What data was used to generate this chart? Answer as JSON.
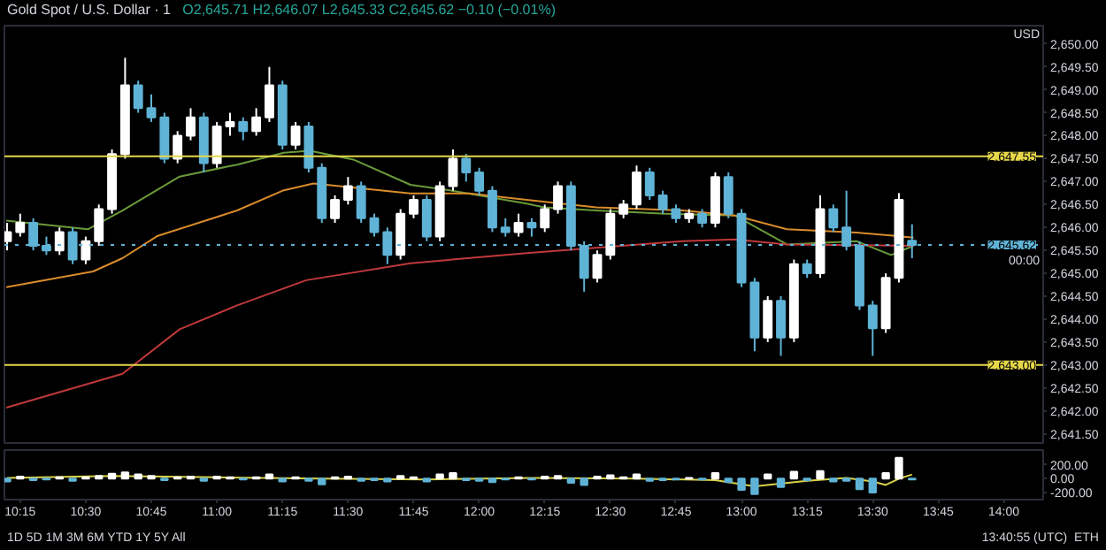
{
  "chart_data": [
    {
      "type": "candlestick",
      "title": "Gold Spot / U.S. Dollar · 1",
      "subtitle": "O2,645.71 H2,646.07 L2,645.33 C2,645.62 −0.10 (−0.01%)",
      "annotations": [
        "USD",
        "00:00"
      ],
      "x": [
        10.2,
        10.25,
        10.3,
        10.35,
        10.4,
        10.45,
        10.5,
        10.55,
        10.6,
        10.65,
        10.7,
        10.75,
        10.8,
        10.85,
        10.9,
        10.95,
        11.0,
        11.05,
        11.1,
        11.15,
        11.2,
        11.25,
        11.3,
        11.35,
        11.4,
        11.45,
        11.5,
        11.55,
        11.6,
        11.65,
        11.7,
        11.75,
        11.8,
        11.85,
        11.9,
        11.95,
        12.0,
        12.05,
        12.1,
        12.15,
        12.2,
        12.25,
        12.3,
        12.35,
        12.4,
        12.45,
        12.5,
        12.55,
        12.6,
        12.65,
        12.7,
        12.75,
        12.8,
        12.85,
        12.9,
        12.95,
        13.0,
        13.05,
        13.1,
        13.15,
        13.2,
        13.25,
        13.3,
        13.35,
        13.4,
        13.45,
        13.5,
        13.55,
        13.6,
        13.65
      ],
      "ohlc": [
        [
          2645.7,
          2646.1,
          2645.5,
          2645.9
        ],
        [
          2645.9,
          2646.3,
          2645.8,
          2646.1
        ],
        [
          2646.1,
          2646.2,
          2645.5,
          2645.6
        ],
        [
          2645.6,
          2645.8,
          2645.4,
          2645.5
        ],
        [
          2645.5,
          2646.0,
          2645.4,
          2645.9
        ],
        [
          2645.9,
          2646.0,
          2645.2,
          2645.3
        ],
        [
          2645.3,
          2645.8,
          2645.2,
          2645.7
        ],
        [
          2645.7,
          2646.5,
          2645.6,
          2646.4
        ],
        [
          2646.4,
          2647.7,
          2646.3,
          2647.6
        ],
        [
          2647.6,
          2649.7,
          2647.5,
          2649.1
        ],
        [
          2649.1,
          2649.2,
          2648.5,
          2648.6
        ],
        [
          2648.6,
          2648.9,
          2648.3,
          2648.4
        ],
        [
          2648.4,
          2648.5,
          2647.4,
          2647.5
        ],
        [
          2647.5,
          2648.1,
          2647.4,
          2648.0
        ],
        [
          2648.0,
          2648.6,
          2647.9,
          2648.4
        ],
        [
          2648.4,
          2648.5,
          2647.2,
          2647.4
        ],
        [
          2647.4,
          2648.3,
          2647.3,
          2648.2
        ],
        [
          2648.2,
          2648.5,
          2648.0,
          2648.3
        ],
        [
          2648.3,
          2648.4,
          2647.9,
          2648.1
        ],
        [
          2648.1,
          2648.6,
          2648.0,
          2648.4
        ],
        [
          2648.4,
          2649.5,
          2648.3,
          2649.1
        ],
        [
          2649.1,
          2649.2,
          2647.7,
          2647.8
        ],
        [
          2647.8,
          2648.3,
          2647.7,
          2648.2
        ],
        [
          2648.2,
          2648.3,
          2647.2,
          2647.3
        ],
        [
          2647.3,
          2647.4,
          2646.1,
          2646.2
        ],
        [
          2646.2,
          2646.7,
          2646.1,
          2646.6
        ],
        [
          2646.6,
          2647.1,
          2646.5,
          2646.9
        ],
        [
          2646.9,
          2647.0,
          2646.1,
          2646.2
        ],
        [
          2646.2,
          2646.3,
          2645.8,
          2645.9
        ],
        [
          2645.9,
          2646.0,
          2645.2,
          2645.4
        ],
        [
          2645.4,
          2646.4,
          2645.3,
          2646.3
        ],
        [
          2646.3,
          2646.7,
          2646.2,
          2646.6
        ],
        [
          2646.6,
          2646.7,
          2645.7,
          2645.8
        ],
        [
          2645.8,
          2647.0,
          2645.7,
          2646.9
        ],
        [
          2646.9,
          2647.7,
          2646.8,
          2647.5
        ],
        [
          2647.5,
          2647.6,
          2647.0,
          2647.2
        ],
        [
          2647.2,
          2647.3,
          2646.7,
          2646.8
        ],
        [
          2646.8,
          2646.9,
          2645.9,
          2646.0
        ],
        [
          2646.0,
          2646.2,
          2645.8,
          2645.9
        ],
        [
          2645.9,
          2646.3,
          2645.8,
          2646.1
        ],
        [
          2646.1,
          2646.2,
          2645.8,
          2646.0
        ],
        [
          2646.0,
          2646.5,
          2645.9,
          2646.4
        ],
        [
          2646.4,
          2647.0,
          2646.3,
          2646.9
        ],
        [
          2646.9,
          2647.0,
          2645.5,
          2645.6
        ],
        [
          2645.6,
          2645.7,
          2644.6,
          2644.9
        ],
        [
          2644.9,
          2645.5,
          2644.8,
          2645.4
        ],
        [
          2645.4,
          2646.4,
          2645.3,
          2646.3
        ],
        [
          2646.3,
          2646.6,
          2646.2,
          2646.5
        ],
        [
          2646.5,
          2647.35,
          2646.4,
          2647.2
        ],
        [
          2647.2,
          2647.3,
          2646.6,
          2646.7
        ],
        [
          2646.7,
          2646.8,
          2646.3,
          2646.4
        ],
        [
          2646.4,
          2646.5,
          2646.1,
          2646.2
        ],
        [
          2646.2,
          2646.4,
          2646.1,
          2646.3
        ],
        [
          2646.3,
          2646.4,
          2646.0,
          2646.1
        ],
        [
          2646.1,
          2647.2,
          2646.0,
          2647.1
        ],
        [
          2647.1,
          2647.2,
          2646.2,
          2646.3
        ],
        [
          2646.3,
          2646.4,
          2644.7,
          2644.8
        ],
        [
          2644.8,
          2644.9,
          2643.3,
          2643.6
        ],
        [
          2643.6,
          2644.5,
          2643.5,
          2644.4
        ],
        [
          2644.4,
          2644.5,
          2643.2,
          2643.6
        ],
        [
          2643.6,
          2645.3,
          2643.5,
          2645.2
        ],
        [
          2645.2,
          2645.3,
          2644.9,
          2645.0
        ],
        [
          2645.0,
          2646.7,
          2644.9,
          2646.4
        ],
        [
          2646.4,
          2646.5,
          2645.9,
          2646.0
        ],
        [
          2646.0,
          2646.8,
          2645.5,
          2645.6
        ],
        [
          2645.6,
          2645.7,
          2644.2,
          2644.3
        ],
        [
          2644.3,
          2644.4,
          2643.2,
          2643.8
        ],
        [
          2643.8,
          2645.0,
          2643.7,
          2644.9
        ],
        [
          2644.9,
          2646.75,
          2644.8,
          2646.6
        ],
        [
          2645.71,
          2646.07,
          2645.33,
          2645.62
        ]
      ],
      "colors": [
        "#ffffff",
        "#ffffff",
        "#5fb3d6",
        "#5fb3d6",
        "#ffffff",
        "#5fb3d6",
        "#ffffff",
        "#ffffff",
        "#ffffff",
        "#ffffff",
        "#5fb3d6",
        "#5fb3d6",
        "#5fb3d6",
        "#ffffff",
        "#ffffff",
        "#5fb3d6",
        "#ffffff",
        "#ffffff",
        "#5fb3d6",
        "#ffffff",
        "#ffffff",
        "#5fb3d6",
        "#ffffff",
        "#5fb3d6",
        "#5fb3d6",
        "#ffffff",
        "#ffffff",
        "#5fb3d6",
        "#5fb3d6",
        "#5fb3d6",
        "#ffffff",
        "#ffffff",
        "#5fb3d6",
        "#ffffff",
        "#ffffff",
        "#5fb3d6",
        "#5fb3d6",
        "#5fb3d6",
        "#5fb3d6",
        "#ffffff",
        "#5fb3d6",
        "#ffffff",
        "#ffffff",
        "#5fb3d6",
        "#5fb3d6",
        "#ffffff",
        "#ffffff",
        "#ffffff",
        "#ffffff",
        "#5fb3d6",
        "#5fb3d6",
        "#5fb3d6",
        "#ffffff",
        "#5fb3d6",
        "#ffffff",
        "#5fb3d6",
        "#5fb3d6",
        "#5fb3d6",
        "#ffffff",
        "#5fb3d6",
        "#ffffff",
        "#5fb3d6",
        "#ffffff",
        "#5fb3d6",
        "#5fb3d6",
        "#5fb3d6",
        "#5fb3d6",
        "#ffffff",
        "#ffffff",
        "#5fb3d6"
      ],
      "series": [
        {
          "type": "line",
          "color": "#6a9a3a",
          "x": [
            10.197,
            10.508,
            10.64,
            10.858,
            11.077,
            11.255,
            11.354,
            11.52,
            11.738,
            11.897,
            12.181,
            12.247,
            12.446,
            12.71,
            12.975,
            13.173,
            13.438,
            13.57,
            13.656
          ],
          "values": [
            2646.15,
            2645.96,
            2646.37,
            2647.11,
            2647.37,
            2647.63,
            2647.67,
            2647.48,
            2646.93,
            2646.8,
            2646.52,
            2646.44,
            2646.37,
            2646.3,
            2646.26,
            2645.63,
            2645.7,
            2645.4,
            2645.6
          ]
        },
        {
          "type": "line",
          "color": "#d98c2b",
          "x": [
            10.197,
            10.528,
            10.64,
            10.772,
            11.077,
            11.255,
            11.368,
            11.738,
            11.963,
            12.181,
            12.446,
            12.776,
            12.975,
            13.173,
            13.438,
            13.656
          ],
          "values": [
            2644.7,
            2645.04,
            2645.33,
            2645.81,
            2646.37,
            2646.81,
            2646.96,
            2646.74,
            2646.74,
            2646.6,
            2646.44,
            2646.37,
            2646.26,
            2645.96,
            2645.89,
            2645.78
          ]
        },
        {
          "type": "line",
          "color": "#c0393b",
          "x": [
            10.197,
            10.64,
            10.858,
            11.077,
            11.341,
            11.738,
            12.181,
            12.776,
            12.975,
            13.173,
            13.656
          ],
          "values": [
            2642.07,
            2642.81,
            2643.78,
            2644.3,
            2644.85,
            2645.22,
            2645.44,
            2645.7,
            2645.74,
            2645.63,
            2645.6
          ]
        }
      ],
      "ref_lines": [
        {
          "axis": "y",
          "value": 2647.55,
          "label": "2,647.55",
          "color": "#e6d84a",
          "line_style": "solid"
        },
        {
          "axis": "y",
          "value": 2643.0,
          "label": "2,643.00",
          "color": "#e6d84a",
          "line_style": "solid"
        },
        {
          "axis": "y",
          "value": 2645.62,
          "label": "2,645.62",
          "color": "#5fb3d6",
          "line_style": "dotted"
        }
      ],
      "xlim": [
        10.19,
        14.15
      ],
      "ylim": [
        2641.3,
        2650.4
      ],
      "yticks": [
        {
          "value": 2641.5,
          "label": "2,641.50"
        },
        {
          "value": 2642.0,
          "label": "2,642.00"
        },
        {
          "value": 2642.5,
          "label": "2,642.50"
        },
        {
          "value": 2643.0,
          "label": "2,643.00"
        },
        {
          "value": 2643.5,
          "label": "2,643.50"
        },
        {
          "value": 2644.0,
          "label": "2,644.00"
        },
        {
          "value": 2644.5,
          "label": "2,644.50"
        },
        {
          "value": 2645.0,
          "label": "2,645.00"
        },
        {
          "value": 2645.5,
          "label": "2,645.50"
        },
        {
          "value": 2646.0,
          "label": "2,646.00"
        },
        {
          "value": 2646.5,
          "label": "2,646.50"
        },
        {
          "value": 2647.0,
          "label": "2,647.00"
        },
        {
          "value": 2647.5,
          "label": "2,647.50"
        },
        {
          "value": 2648.0,
          "label": "2,648.00"
        },
        {
          "value": 2648.5,
          "label": "2,648.50"
        },
        {
          "value": 2649.0,
          "label": "2,649.00"
        },
        {
          "value": 2649.5,
          "label": "2,649.50"
        },
        {
          "value": 2650.0,
          "label": "2,650.00"
        }
      ],
      "tick_labels": "y"
    },
    {
      "type": "bar",
      "annotations": [
        "1D 5D 1M 3M 6M YTD 1Y 5Y All",
        "13:40:55 (UTC)",
        "ETH"
      ],
      "x": [
        10.2,
        10.25,
        10.3,
        10.35,
        10.4,
        10.45,
        10.5,
        10.55,
        10.6,
        10.65,
        10.7,
        10.75,
        10.8,
        10.85,
        10.9,
        10.95,
        11.0,
        11.05,
        11.1,
        11.15,
        11.2,
        11.25,
        11.3,
        11.35,
        11.4,
        11.45,
        11.5,
        11.55,
        11.6,
        11.65,
        11.7,
        11.75,
        11.8,
        11.85,
        11.9,
        11.95,
        12.0,
        12.05,
        12.1,
        12.15,
        12.2,
        12.25,
        12.3,
        12.35,
        12.4,
        12.45,
        12.5,
        12.55,
        12.6,
        12.65,
        12.7,
        12.75,
        12.8,
        12.85,
        12.9,
        12.95,
        13.0,
        13.05,
        13.1,
        13.15,
        13.2,
        13.25,
        13.3,
        13.35,
        13.4,
        13.45,
        13.5,
        13.55,
        13.6,
        13.65
      ],
      "values": [
        -40,
        30,
        -20,
        -10,
        20,
        -30,
        20,
        40,
        70,
        90,
        60,
        40,
        -20,
        20,
        30,
        -30,
        30,
        20,
        -10,
        20,
        60,
        -40,
        20,
        -30,
        -80,
        20,
        30,
        -30,
        -20,
        -40,
        40,
        20,
        -40,
        60,
        80,
        -20,
        -30,
        -50,
        -10,
        20,
        -10,
        30,
        40,
        -60,
        -90,
        30,
        50,
        20,
        60,
        -30,
        -20,
        -10,
        10,
        -10,
        80,
        -50,
        -160,
        -220,
        60,
        -120,
        100,
        -20,
        110,
        -40,
        -30,
        -150,
        -200,
        80,
        300,
        -10
      ],
      "colors": [
        "#5fb3d6",
        "#ffffff",
        "#5fb3d6",
        "#5fb3d6",
        "#ffffff",
        "#5fb3d6",
        "#ffffff",
        "#ffffff",
        "#ffffff",
        "#ffffff",
        "#ffffff",
        "#ffffff",
        "#5fb3d6",
        "#ffffff",
        "#ffffff",
        "#5fb3d6",
        "#ffffff",
        "#ffffff",
        "#5fb3d6",
        "#ffffff",
        "#ffffff",
        "#5fb3d6",
        "#ffffff",
        "#5fb3d6",
        "#5fb3d6",
        "#ffffff",
        "#ffffff",
        "#5fb3d6",
        "#5fb3d6",
        "#5fb3d6",
        "#ffffff",
        "#ffffff",
        "#5fb3d6",
        "#ffffff",
        "#ffffff",
        "#5fb3d6",
        "#5fb3d6",
        "#5fb3d6",
        "#5fb3d6",
        "#ffffff",
        "#5fb3d6",
        "#ffffff",
        "#ffffff",
        "#5fb3d6",
        "#5fb3d6",
        "#ffffff",
        "#ffffff",
        "#ffffff",
        "#ffffff",
        "#5fb3d6",
        "#5fb3d6",
        "#5fb3d6",
        "#ffffff",
        "#5fb3d6",
        "#ffffff",
        "#5fb3d6",
        "#5fb3d6",
        "#5fb3d6",
        "#ffffff",
        "#5fb3d6",
        "#ffffff",
        "#5fb3d6",
        "#ffffff",
        "#5fb3d6",
        "#5fb3d6",
        "#5fb3d6",
        "#5fb3d6",
        "#ffffff",
        "#ffffff",
        "#5fb3d6"
      ],
      "series": [
        {
          "type": "line",
          "color": "#d9d24a",
          "x": [
            10.2,
            10.6,
            11.0,
            11.4,
            11.8,
            12.2,
            12.6,
            12.9,
            13.05,
            13.25,
            13.4,
            13.5,
            13.55,
            13.6,
            13.65
          ],
          "values": [
            10,
            40,
            20,
            0,
            -10,
            10,
            0,
            -20,
            -110,
            -30,
            10,
            -40,
            -90,
            0,
            60
          ]
        }
      ],
      "xlim": [
        10.19,
        14.15
      ],
      "xticks": [
        {
          "value": 10.25,
          "label": "10:15"
        },
        {
          "value": 10.5,
          "label": "10:30"
        },
        {
          "value": 10.75,
          "label": "10:45"
        },
        {
          "value": 11.0,
          "label": "11:00"
        },
        {
          "value": 11.25,
          "label": "11:15"
        },
        {
          "value": 11.5,
          "label": "11:30"
        },
        {
          "value": 11.75,
          "label": "11:45"
        },
        {
          "value": 12.0,
          "label": "12:00"
        },
        {
          "value": 12.25,
          "label": "12:15"
        },
        {
          "value": 12.5,
          "label": "12:30"
        },
        {
          "value": 12.75,
          "label": "12:45"
        },
        {
          "value": 13.0,
          "label": "13:00"
        },
        {
          "value": 13.25,
          "label": "13:15"
        },
        {
          "value": 13.5,
          "label": "13:30"
        },
        {
          "value": 13.75,
          "label": "13:45"
        },
        {
          "value": 14.0,
          "label": "14:00"
        }
      ],
      "ylim": [
        -300,
        410
      ],
      "yticks": [
        {
          "value": 200,
          "label": "200.00"
        },
        {
          "value": 0,
          "label": "0.00"
        },
        {
          "value": -200,
          "label": "-200.00"
        }
      ]
    }
  ]
}
